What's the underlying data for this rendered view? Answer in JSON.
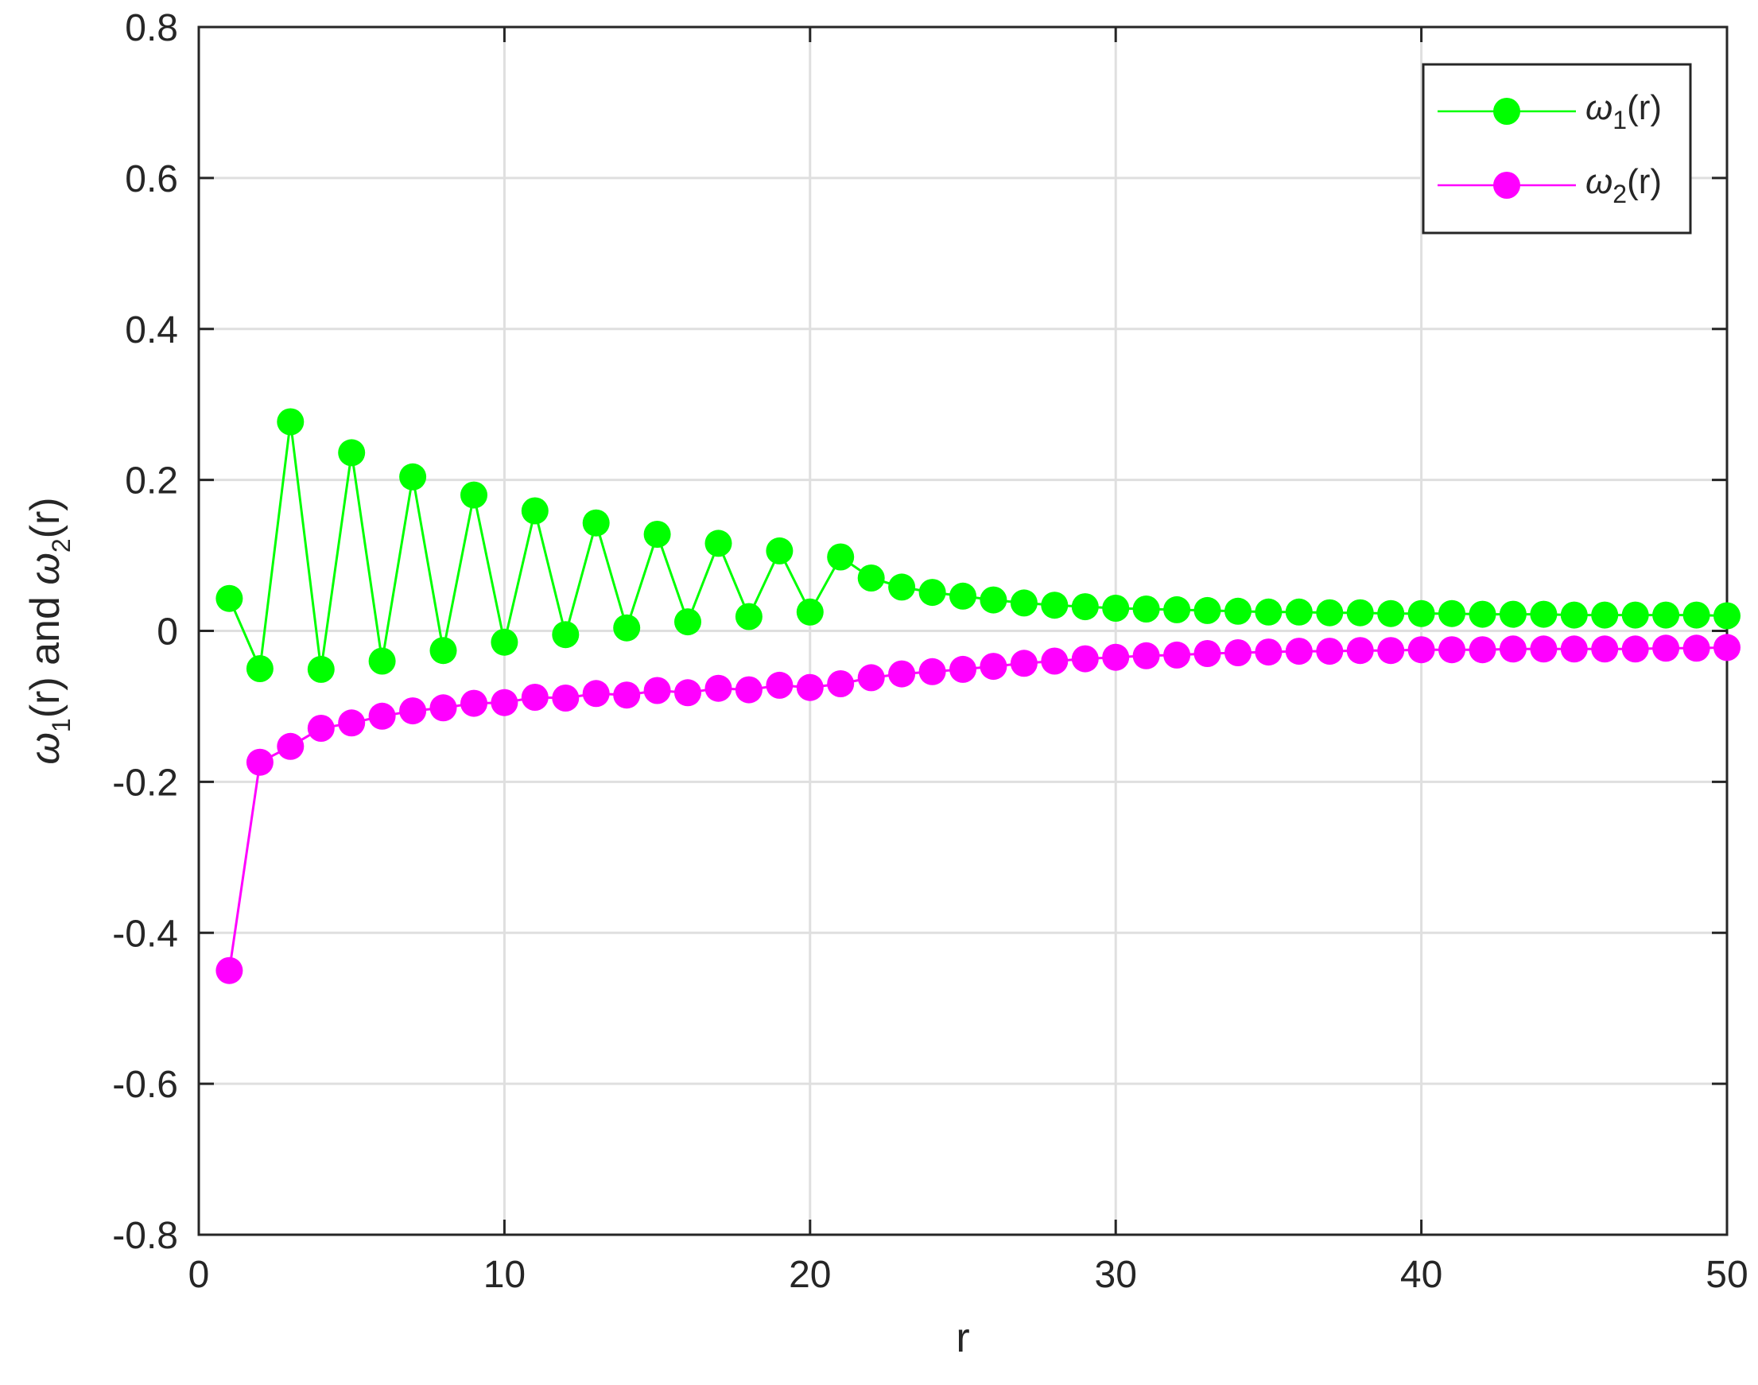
{
  "chart_data": {
    "type": "line",
    "xlabel": "r",
    "ylabel": {
      "parts": [
        "ω",
        "1",
        "(r) and ",
        "ω",
        "2",
        "(r)"
      ]
    },
    "xlim": [
      0,
      50
    ],
    "ylim": [
      -0.8,
      0.8
    ],
    "xticks": [
      0,
      10,
      20,
      30,
      40,
      50
    ],
    "xtick_labels": [
      "0",
      "10",
      "20",
      "30",
      "40",
      "50"
    ],
    "yticks": [
      -0.8,
      -0.6,
      -0.4,
      -0.2,
      0,
      0.2,
      0.4,
      0.6,
      0.8
    ],
    "ytick_labels": [
      "-0.8",
      "-0.6",
      "-0.4",
      "-0.2",
      "0",
      "0.2",
      "0.4",
      "0.6",
      "0.8"
    ],
    "grid": true,
    "legend_position": "top-right",
    "x": [
      1,
      2,
      3,
      4,
      5,
      6,
      7,
      8,
      9,
      10,
      11,
      12,
      13,
      14,
      15,
      16,
      17,
      18,
      19,
      20,
      21,
      22,
      23,
      24,
      25,
      26,
      27,
      28,
      29,
      30,
      31,
      32,
      33,
      34,
      35,
      36,
      37,
      38,
      39,
      40,
      41,
      42,
      43,
      44,
      45,
      46,
      47,
      48,
      49,
      50
    ],
    "series": [
      {
        "name": "ω1(r)",
        "legend": {
          "sym": "ω",
          "sub": "1",
          "rest": "(r)"
        },
        "color": "#00ff00",
        "marker": "circle",
        "values": [
          0.043,
          -0.05,
          0.277,
          -0.051,
          0.236,
          -0.04,
          0.204,
          -0.026,
          0.18,
          -0.015,
          0.159,
          -0.005,
          0.143,
          0.004,
          0.128,
          0.012,
          0.116,
          0.019,
          0.106,
          0.025,
          0.098,
          0.07,
          0.058,
          0.051,
          0.046,
          0.041,
          0.037,
          0.034,
          0.032,
          0.03,
          0.029,
          0.028,
          0.027,
          0.026,
          0.025,
          0.025,
          0.024,
          0.024,
          0.023,
          0.023,
          0.023,
          0.022,
          0.022,
          0.022,
          0.021,
          0.021,
          0.021,
          0.021,
          0.021,
          0.02
        ]
      },
      {
        "name": "ω2(r)",
        "legend": {
          "sym": "ω",
          "sub": "2",
          "rest": "(r)"
        },
        "color": "#ff00ff",
        "marker": "circle",
        "values": [
          -0.45,
          -0.174,
          -0.153,
          -0.129,
          -0.122,
          -0.113,
          -0.106,
          -0.102,
          -0.096,
          -0.095,
          -0.088,
          -0.089,
          -0.083,
          -0.085,
          -0.079,
          -0.082,
          -0.076,
          -0.078,
          -0.072,
          -0.075,
          -0.07,
          -0.062,
          -0.057,
          -0.054,
          -0.051,
          -0.047,
          -0.043,
          -0.04,
          -0.037,
          -0.035,
          -0.033,
          -0.032,
          -0.03,
          -0.029,
          -0.028,
          -0.027,
          -0.027,
          -0.026,
          -0.026,
          -0.025,
          -0.025,
          -0.025,
          -0.024,
          -0.024,
          -0.024,
          -0.024,
          -0.024,
          -0.023,
          -0.023,
          -0.022
        ]
      }
    ]
  }
}
